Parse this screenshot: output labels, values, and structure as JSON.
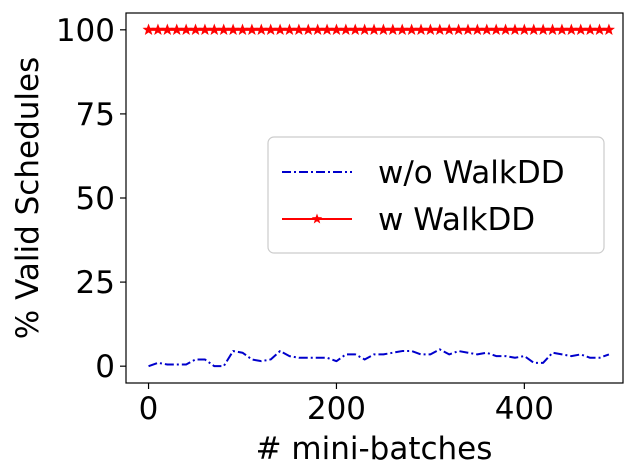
{
  "chart_data": {
    "type": "line",
    "xlabel": "# mini-batches",
    "ylabel": "% Valid Schedules",
    "xlim": [
      -24,
      505
    ],
    "ylim": [
      -5,
      105
    ],
    "xticks": [
      0,
      200,
      400
    ],
    "yticks": [
      0,
      25,
      50,
      75,
      100
    ],
    "grid": false,
    "legend_position": "center-right",
    "x": [
      0,
      10,
      20,
      30,
      40,
      50,
      60,
      70,
      80,
      90,
      100,
      110,
      120,
      130,
      140,
      150,
      160,
      170,
      180,
      190,
      200,
      210,
      220,
      230,
      240,
      250,
      260,
      270,
      280,
      290,
      300,
      310,
      320,
      330,
      340,
      350,
      360,
      370,
      380,
      390,
      400,
      410,
      420,
      430,
      440,
      450,
      460,
      470,
      480,
      490
    ],
    "series": [
      {
        "name": "w/o WalkDD",
        "color": "#0000cc",
        "line_style": "dash-dot",
        "marker": "none",
        "values": [
          0,
          1,
          0.5,
          0.5,
          0.5,
          2,
          2,
          0,
          0,
          4.5,
          4,
          2,
          1.5,
          2,
          4.5,
          3,
          2.5,
          2.5,
          2.5,
          2.5,
          1.5,
          3.5,
          3.5,
          2,
          3.5,
          3.5,
          4,
          4.5,
          4.5,
          3.5,
          3.5,
          5,
          3.5,
          4.5,
          4,
          3.5,
          4,
          3,
          3,
          2.5,
          3,
          1,
          1,
          4,
          3.5,
          3,
          3.5,
          2.5,
          2.5,
          3.5
        ]
      },
      {
        "name": "w WalkDD",
        "color": "#ff0000",
        "line_style": "solid",
        "marker": "star",
        "values": [
          100,
          100,
          100,
          100,
          100,
          100,
          100,
          100,
          100,
          100,
          100,
          100,
          100,
          100,
          100,
          100,
          100,
          100,
          100,
          100,
          100,
          100,
          100,
          100,
          100,
          100,
          100,
          100,
          100,
          100,
          100,
          100,
          100,
          100,
          100,
          100,
          100,
          100,
          100,
          100,
          100,
          100,
          100,
          100,
          100,
          100,
          100,
          100,
          100,
          100
        ]
      }
    ]
  }
}
